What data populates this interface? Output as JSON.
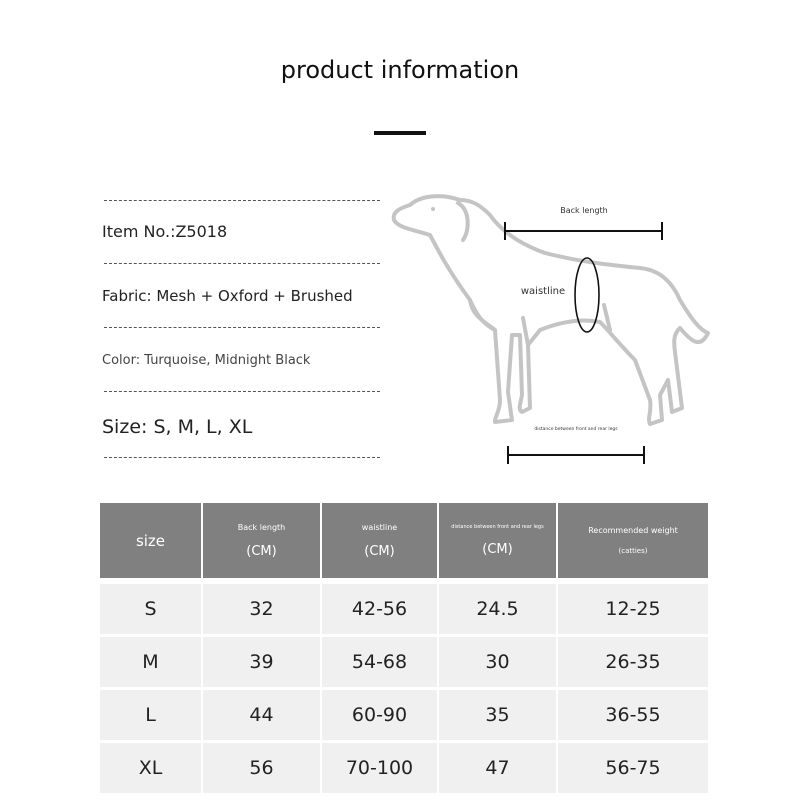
{
  "title": "product information",
  "info": {
    "item_no": "Item No.:Z5018",
    "fabric": "Fabric: Mesh + Oxford + Brushed",
    "color": "Color: Turquoise, Midnight Black",
    "size": "Size: S, M, L, XL"
  },
  "diagram": {
    "back_length": "Back length",
    "waistline": "waistline",
    "leg_distance": "distance between front and rear legs"
  },
  "table": {
    "headers": [
      {
        "label": "size",
        "unit": ""
      },
      {
        "label": "Back length",
        "unit": "(CM)"
      },
      {
        "label": "waistline",
        "unit": "(CM)"
      },
      {
        "label": "distance between front and rear legs",
        "unit": "(CM)"
      },
      {
        "label": "Recommended weight",
        "unit": "(catties)"
      }
    ],
    "rows": [
      [
        "S",
        "32",
        "42-56",
        "24.5",
        "12-25"
      ],
      [
        "M",
        "39",
        "54-68",
        "30",
        "26-35"
      ],
      [
        "L",
        "44",
        "60-90",
        "35",
        "36-55"
      ],
      [
        "XL",
        "56",
        "70-100",
        "47",
        "56-75"
      ]
    ]
  },
  "colors": {
    "header_bg": "#808080",
    "row_bg": "#f0f0f0",
    "dog_outline": "#c4c4c4"
  }
}
